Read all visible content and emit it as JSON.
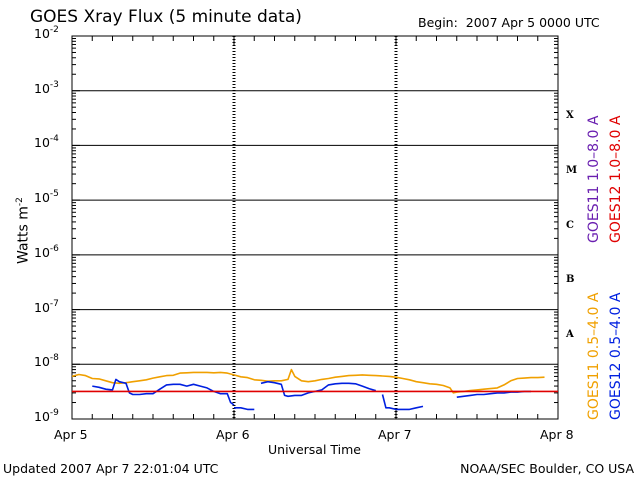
{
  "header": {
    "title": "GOES Xray Flux (5 minute data)",
    "begin_label": "Begin:",
    "begin_value": "2007 Apr 5 0000 UTC"
  },
  "footer": {
    "updated": "Updated 2007 Apr  7 22:01:04 UTC",
    "credit": "NOAA/SEC Boulder, CO USA"
  },
  "chart_data": {
    "type": "line",
    "title": "GOES Xray Flux (5 minute data)",
    "xlabel": "Universal Time",
    "ylabel_base": "Watts m",
    "ylabel_exp": "-2",
    "yscale": "log",
    "ylim": [
      1e-09,
      0.01
    ],
    "xlim": [
      0,
      72
    ],
    "x_unit": "hours since 2007 Apr 5 0000 UTC",
    "x_ticks": [
      {
        "x": 0,
        "label": "Apr 5"
      },
      {
        "x": 24,
        "label": "Apr 6"
      },
      {
        "x": 48,
        "label": "Apr 7"
      },
      {
        "x": 72,
        "label": "Apr 8"
      }
    ],
    "y_ticks": [
      {
        "exp": -9,
        "base": "10",
        "sup": "-9"
      },
      {
        "exp": -8,
        "base": "10",
        "sup": "-8"
      },
      {
        "exp": -7,
        "base": "10",
        "sup": "-7"
      },
      {
        "exp": -6,
        "base": "10",
        "sup": "-6"
      },
      {
        "exp": -5,
        "base": "10",
        "sup": "-5"
      },
      {
        "exp": -4,
        "base": "10",
        "sup": "-4"
      },
      {
        "exp": -3,
        "base": "10",
        "sup": "-3"
      },
      {
        "exp": -2,
        "base": "10",
        "sup": "-2"
      }
    ],
    "flare_classes": [
      {
        "label": "A",
        "exp": -7.5
      },
      {
        "label": "B",
        "exp": -6.5
      },
      {
        "label": "C",
        "exp": -5.5
      },
      {
        "label": "M",
        "exp": -4.5
      },
      {
        "label": "X",
        "exp": -3.5
      }
    ],
    "grid_horizontal": [
      -8,
      -7,
      -6,
      -5,
      -4,
      -3
    ],
    "day_dividers": [
      24,
      48
    ],
    "series": [
      {
        "name": "GOES11 0.5-4.0 A",
        "color": "#f0a000",
        "points": [
          [
            0,
            6e-09
          ],
          [
            1,
            6.5e-09
          ],
          [
            2,
            6.2e-09
          ],
          [
            3,
            5.5e-09
          ],
          [
            4,
            5.4e-09
          ],
          [
            5,
            5e-09
          ],
          [
            6,
            4.6e-09
          ],
          [
            7,
            4.5e-09
          ],
          [
            8,
            4.6e-09
          ],
          [
            9,
            4.8e-09
          ],
          [
            10,
            5e-09
          ],
          [
            11,
            5.2e-09
          ],
          [
            12,
            5.6e-09
          ],
          [
            13,
            5.9e-09
          ],
          [
            14,
            6.2e-09
          ],
          [
            15,
            6.3e-09
          ],
          [
            16,
            6.9e-09
          ],
          [
            17,
            7e-09
          ],
          [
            18,
            7.1e-09
          ],
          [
            19,
            7.1e-09
          ],
          [
            20,
            7.1e-09
          ],
          [
            21,
            7e-09
          ],
          [
            22,
            7.1e-09
          ],
          [
            23,
            6.9e-09
          ],
          [
            24,
            6.4e-09
          ],
          [
            25,
            5.9e-09
          ],
          [
            26,
            5.7e-09
          ],
          [
            27,
            5.2e-09
          ],
          [
            28,
            5.1e-09
          ],
          [
            29,
            4.9e-09
          ],
          [
            30,
            5e-09
          ],
          [
            31,
            5e-09
          ],
          [
            32,
            5.3e-09
          ],
          [
            32.5,
            8e-09
          ],
          [
            33,
            6e-09
          ],
          [
            34,
            5e-09
          ],
          [
            35,
            4.8e-09
          ],
          [
            36,
            5e-09
          ],
          [
            37,
            5.3e-09
          ],
          [
            38,
            5.5e-09
          ],
          [
            39,
            5.8e-09
          ],
          [
            40,
            6e-09
          ],
          [
            41,
            6.2e-09
          ],
          [
            42,
            6.3e-09
          ],
          [
            43,
            6.4e-09
          ],
          [
            44,
            6.3e-09
          ],
          [
            45,
            6.2e-09
          ],
          [
            46,
            6.1e-09
          ],
          [
            47,
            6e-09
          ],
          [
            48,
            5.8e-09
          ],
          [
            49,
            5.5e-09
          ],
          [
            50,
            5.2e-09
          ],
          [
            51,
            4.8e-09
          ],
          [
            52,
            4.6e-09
          ],
          [
            53,
            4.4e-09
          ],
          [
            54,
            4.3e-09
          ],
          [
            55,
            4.1e-09
          ],
          [
            56,
            3.7e-09
          ],
          [
            56.5,
            3e-09
          ],
          [
            57,
            3.1e-09
          ],
          [
            58,
            3.2e-09
          ],
          [
            59,
            3.3e-09
          ],
          [
            60,
            3.4e-09
          ],
          [
            61,
            3.5e-09
          ],
          [
            62,
            3.6e-09
          ],
          [
            63,
            3.7e-09
          ],
          [
            64,
            4.2e-09
          ],
          [
            65,
            5e-09
          ],
          [
            66,
            5.5e-09
          ],
          [
            67,
            5.6e-09
          ],
          [
            68,
            5.7e-09
          ],
          [
            69,
            5.7e-09
          ],
          [
            70,
            5.8e-09
          ]
        ]
      },
      {
        "name": "GOES12 0.5-4.0 A",
        "color": "#0020e0",
        "segments": [
          [
            [
              3,
              4e-09
            ],
            [
              4,
              3.8e-09
            ],
            [
              5,
              3.5e-09
            ],
            [
              6,
              3.4e-09
            ],
            [
              6.5,
              5.3e-09
            ],
            [
              7,
              4.8e-09
            ],
            [
              8,
              4.5e-09
            ],
            [
              8.5,
              3e-09
            ],
            [
              9,
              2.8e-09
            ],
            [
              10,
              2.8e-09
            ],
            [
              11,
              2.9e-09
            ],
            [
              12,
              2.9e-09
            ],
            [
              13,
              3.5e-09
            ],
            [
              14,
              4.2e-09
            ],
            [
              15,
              4.3e-09
            ],
            [
              16,
              4.3e-09
            ],
            [
              17,
              4e-09
            ],
            [
              18,
              4.3e-09
            ],
            [
              19,
              4e-09
            ],
            [
              20,
              3.7e-09
            ],
            [
              21,
              3.2e-09
            ],
            [
              22,
              2.9e-09
            ],
            [
              23,
              2.9e-09
            ],
            [
              23.5,
              2e-09
            ],
            [
              24,
              1.8e-09
            ]
          ],
          [
            [
              24,
              1.6e-09
            ],
            [
              25,
              1.6e-09
            ],
            [
              26,
              1.5e-09
            ],
            [
              27,
              1.5e-09
            ]
          ],
          [
            [
              28,
              4.5e-09
            ],
            [
              29,
              4.8e-09
            ],
            [
              30,
              4.6e-09
            ],
            [
              31,
              4.3e-09
            ],
            [
              31.5,
              2.7e-09
            ],
            [
              32,
              2.6e-09
            ],
            [
              33,
              2.7e-09
            ],
            [
              34,
              2.7e-09
            ],
            [
              35,
              3e-09
            ],
            [
              36,
              3.2e-09
            ],
            [
              37,
              3.4e-09
            ],
            [
              38,
              4.2e-09
            ],
            [
              39,
              4.4e-09
            ],
            [
              40,
              4.5e-09
            ],
            [
              41,
              4.5e-09
            ],
            [
              42,
              4.4e-09
            ],
            [
              43,
              4e-09
            ],
            [
              44,
              3.6e-09
            ],
            [
              45,
              3.3e-09
            ]
          ],
          [
            [
              46,
              2.8e-09
            ],
            [
              46.5,
              1.6e-09
            ],
            [
              47,
              1.6e-09
            ],
            [
              48,
              1.5e-09
            ],
            [
              49,
              1.5e-09
            ],
            [
              50,
              1.5e-09
            ],
            [
              51,
              1.6e-09
            ],
            [
              52,
              1.7e-09
            ]
          ],
          [
            [
              57,
              2.5e-09
            ],
            [
              58,
              2.6e-09
            ],
            [
              59,
              2.7e-09
            ],
            [
              60,
              2.8e-09
            ],
            [
              61,
              2.8e-09
            ],
            [
              62,
              2.9e-09
            ],
            [
              63,
              3e-09
            ],
            [
              64,
              3e-09
            ],
            [
              65,
              3.1e-09
            ],
            [
              66,
              3.1e-09
            ],
            [
              67,
              3.2e-09
            ],
            [
              68,
              3.2e-09
            ]
          ]
        ]
      },
      {
        "name": "GOES12 1.0-8.0 A",
        "color": "#e00000",
        "points": [
          [
            0,
            3.2e-09
          ],
          [
            72,
            3.2e-09
          ]
        ]
      }
    ],
    "legend": [
      {
        "text": "GOES11 1.0–8.0 A",
        "color": "#6a1fb0"
      },
      {
        "text": "GOES12 1.0–8.0 A",
        "color": "#e00000"
      },
      {
        "text": "GOES11 0.5–4.0 A",
        "color": "#f0a000"
      },
      {
        "text": "GOES12 0.5–4.0 A",
        "color": "#0020e0"
      }
    ]
  }
}
